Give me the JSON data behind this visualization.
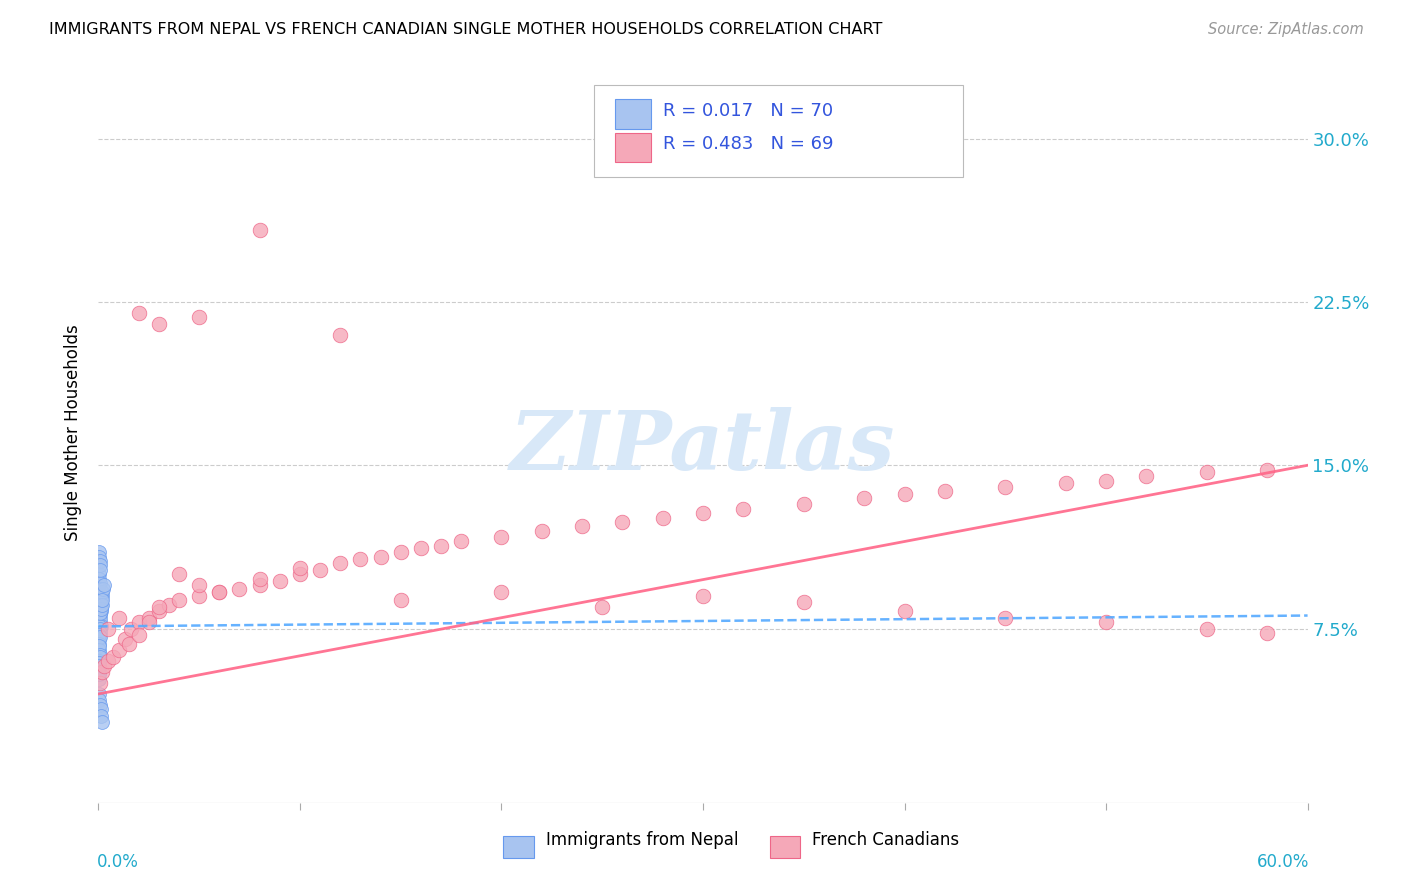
{
  "title": "IMMIGRANTS FROM NEPAL VS FRENCH CANADIAN SINGLE MOTHER HOUSEHOLDS CORRELATION CHART",
  "source": "Source: ZipAtlas.com",
  "ylabel": "Single Mother Households",
  "ytick_values": [
    0.0,
    0.075,
    0.15,
    0.225,
    0.3
  ],
  "ytick_labels": [
    "",
    "7.5%",
    "15.0%",
    "22.5%",
    "30.0%"
  ],
  "xlim": [
    0.0,
    0.6
  ],
  "ylim": [
    -0.005,
    0.335
  ],
  "color_blue": "#a8c4f0",
  "color_pink": "#f5a8b8",
  "color_blue_edge": "#6699ee",
  "color_pink_edge": "#ee6688",
  "color_blue_line": "#55aaff",
  "color_pink_line": "#ff6688",
  "watermark_text": "ZIPatlas",
  "watermark_color": "#d8e8f8",
  "nepal_x": [
    0.0002,
    0.0003,
    0.0004,
    0.0005,
    0.0006,
    0.0008,
    0.001,
    0.0012,
    0.0015,
    0.0002,
    0.0003,
    0.0004,
    0.0005,
    0.0007,
    0.0009,
    0.0011,
    0.0013,
    0.0002,
    0.0003,
    0.0004,
    0.0005,
    0.0006,
    0.0008,
    0.001,
    0.0002,
    0.0003,
    0.0005,
    0.0007,
    0.0009,
    0.0012,
    0.0002,
    0.0003,
    0.0004,
    0.0006,
    0.0008,
    0.0003,
    0.0004,
    0.0005,
    0.0007,
    0.0003,
    0.0005,
    0.0007,
    0.0004,
    0.0006,
    0.0002,
    0.0004,
    0.0003,
    0.0005,
    0.0002,
    0.0003,
    0.0015,
    0.0018,
    0.002,
    0.0025,
    0.003,
    0.001,
    0.0012,
    0.0016,
    0.002,
    0.0002,
    0.0004,
    0.0006,
    0.0008,
    0.001,
    0.0003,
    0.0005,
    0.0008,
    0.0012,
    0.0015,
    0.002
  ],
  "nepal_y": [
    0.095,
    0.1,
    0.098,
    0.092,
    0.096,
    0.093,
    0.091,
    0.088,
    0.085,
    0.085,
    0.088,
    0.082,
    0.09,
    0.087,
    0.084,
    0.086,
    0.083,
    0.08,
    0.083,
    0.079,
    0.085,
    0.081,
    0.086,
    0.084,
    0.078,
    0.082,
    0.08,
    0.077,
    0.079,
    0.076,
    0.074,
    0.076,
    0.072,
    0.075,
    0.073,
    0.07,
    0.072,
    0.068,
    0.071,
    0.065,
    0.067,
    0.063,
    0.06,
    0.062,
    0.057,
    0.059,
    0.055,
    0.058,
    0.052,
    0.054,
    0.088,
    0.09,
    0.092,
    0.093,
    0.095,
    0.082,
    0.084,
    0.086,
    0.088,
    0.11,
    0.108,
    0.106,
    0.104,
    0.102,
    0.045,
    0.042,
    0.04,
    0.038,
    0.035,
    0.032
  ],
  "french_x": [
    0.001,
    0.002,
    0.003,
    0.005,
    0.007,
    0.01,
    0.013,
    0.016,
    0.02,
    0.025,
    0.03,
    0.035,
    0.04,
    0.05,
    0.06,
    0.07,
    0.08,
    0.09,
    0.1,
    0.11,
    0.12,
    0.13,
    0.14,
    0.15,
    0.16,
    0.17,
    0.18,
    0.2,
    0.22,
    0.24,
    0.26,
    0.28,
    0.3,
    0.32,
    0.35,
    0.38,
    0.4,
    0.42,
    0.45,
    0.48,
    0.5,
    0.52,
    0.55,
    0.58,
    0.005,
    0.01,
    0.015,
    0.02,
    0.025,
    0.03,
    0.04,
    0.05,
    0.06,
    0.08,
    0.1,
    0.15,
    0.2,
    0.25,
    0.3,
    0.35,
    0.4,
    0.45,
    0.5,
    0.55,
    0.58,
    0.02,
    0.03,
    0.05,
    0.08,
    0.12
  ],
  "french_y": [
    0.05,
    0.055,
    0.058,
    0.06,
    0.062,
    0.065,
    0.07,
    0.075,
    0.078,
    0.08,
    0.083,
    0.086,
    0.088,
    0.09,
    0.092,
    0.093,
    0.095,
    0.097,
    0.1,
    0.102,
    0.105,
    0.107,
    0.108,
    0.11,
    0.112,
    0.113,
    0.115,
    0.117,
    0.12,
    0.122,
    0.124,
    0.126,
    0.128,
    0.13,
    0.132,
    0.135,
    0.137,
    0.138,
    0.14,
    0.142,
    0.143,
    0.145,
    0.147,
    0.148,
    0.075,
    0.08,
    0.068,
    0.072,
    0.078,
    0.085,
    0.1,
    0.095,
    0.092,
    0.098,
    0.103,
    0.088,
    0.092,
    0.085,
    0.09,
    0.087,
    0.083,
    0.08,
    0.078,
    0.075,
    0.073,
    0.22,
    0.215,
    0.218,
    0.258,
    0.21
  ]
}
